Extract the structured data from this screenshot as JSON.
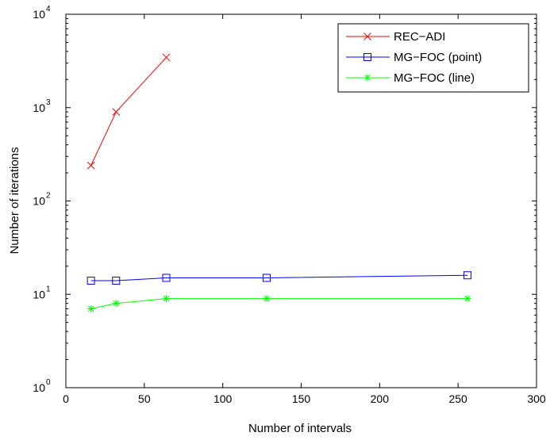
{
  "chart_data": {
    "type": "line",
    "xlabel": "Number of intervals",
    "ylabel": "Number of iterations",
    "xlim": [
      0,
      300
    ],
    "ylim": [
      1,
      10000
    ],
    "yscale": "log",
    "grid": false,
    "legend_position": "top-right",
    "x_ticks": [
      0,
      50,
      100,
      150,
      200,
      250,
      300
    ],
    "y_ticks": [
      {
        "value": 1,
        "base": "10",
        "exp": "0"
      },
      {
        "value": 10,
        "base": "10",
        "exp": "1"
      },
      {
        "value": 100,
        "base": "10",
        "exp": "2"
      },
      {
        "value": 1000,
        "base": "10",
        "exp": "3"
      },
      {
        "value": 10000,
        "base": "10",
        "exp": "4"
      }
    ],
    "series": [
      {
        "name": "REC−ADI",
        "color": "#ff0000",
        "marker": "x",
        "x": [
          16,
          32,
          64
        ],
        "y": [
          240,
          900,
          3450
        ]
      },
      {
        "name": "MG−FOC (point)",
        "color": "#0000ff",
        "marker": "square",
        "x": [
          16,
          32,
          64,
          128,
          256
        ],
        "y": [
          14,
          14,
          15,
          15,
          16
        ]
      },
      {
        "name": "MG−FOC (line)",
        "color": "#00ff00",
        "marker": "asterisk",
        "x": [
          16,
          32,
          64,
          128,
          256
        ],
        "y": [
          7,
          8,
          9,
          9,
          9
        ]
      }
    ]
  }
}
